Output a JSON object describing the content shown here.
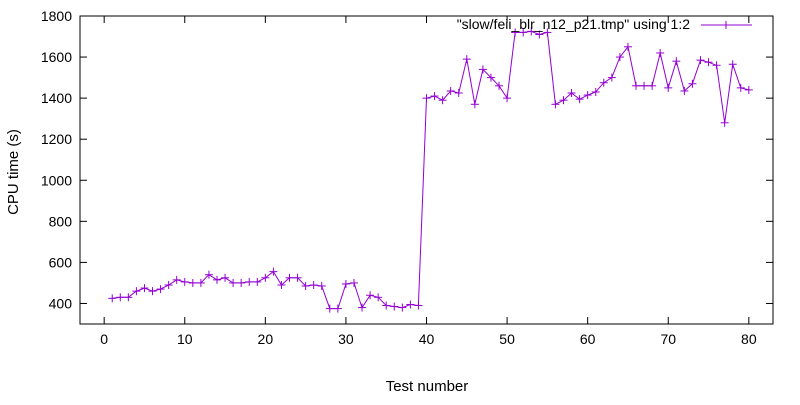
{
  "chart_data": {
    "type": "line",
    "title": "",
    "xlabel": "Test number",
    "ylabel": "CPU time (s)",
    "xlim": [
      -3,
      83
    ],
    "ylim": [
      300,
      1800
    ],
    "x_ticks": [
      0,
      10,
      20,
      30,
      40,
      50,
      60,
      70,
      80
    ],
    "y_ticks": [
      400,
      600,
      800,
      1000,
      1200,
      1400,
      1600,
      1800
    ],
    "grid": false,
    "legend_position": "top-right",
    "series": [
      {
        "name": "\"slow/feii_blr_n12_p21.tmp\" using 1:2",
        "color": "#9400d3",
        "marker": "plus",
        "x": [
          1,
          2,
          3,
          4,
          5,
          6,
          7,
          8,
          9,
          10,
          11,
          12,
          13,
          14,
          15,
          16,
          17,
          18,
          19,
          20,
          21,
          22,
          23,
          24,
          25,
          26,
          27,
          28,
          29,
          30,
          31,
          32,
          33,
          34,
          35,
          36,
          37,
          38,
          39,
          40,
          41,
          42,
          43,
          44,
          45,
          46,
          47,
          48,
          49,
          50,
          51,
          52,
          53,
          54,
          55,
          56,
          57,
          58,
          59,
          60,
          61,
          62,
          63,
          64,
          65,
          66,
          67,
          68,
          69,
          70,
          71,
          72,
          73,
          74,
          75,
          76,
          77,
          78,
          79,
          80
        ],
        "y": [
          425,
          430,
          430,
          460,
          475,
          460,
          470,
          490,
          515,
          505,
          500,
          500,
          540,
          515,
          525,
          500,
          500,
          505,
          505,
          525,
          555,
          490,
          525,
          525,
          485,
          490,
          485,
          375,
          375,
          495,
          500,
          380,
          440,
          430,
          390,
          385,
          380,
          395,
          390,
          1400,
          1410,
          1390,
          1435,
          1425,
          1590,
          1370,
          1540,
          1500,
          1460,
          1400,
          1720,
          1720,
          1725,
          1710,
          1720,
          1370,
          1390,
          1425,
          1395,
          1415,
          1430,
          1475,
          1500,
          1600,
          1650,
          1460,
          1460,
          1460,
          1620,
          1450,
          1580,
          1435,
          1470,
          1585,
          1575,
          1560,
          1280,
          1565,
          1450,
          1440
        ]
      }
    ]
  }
}
